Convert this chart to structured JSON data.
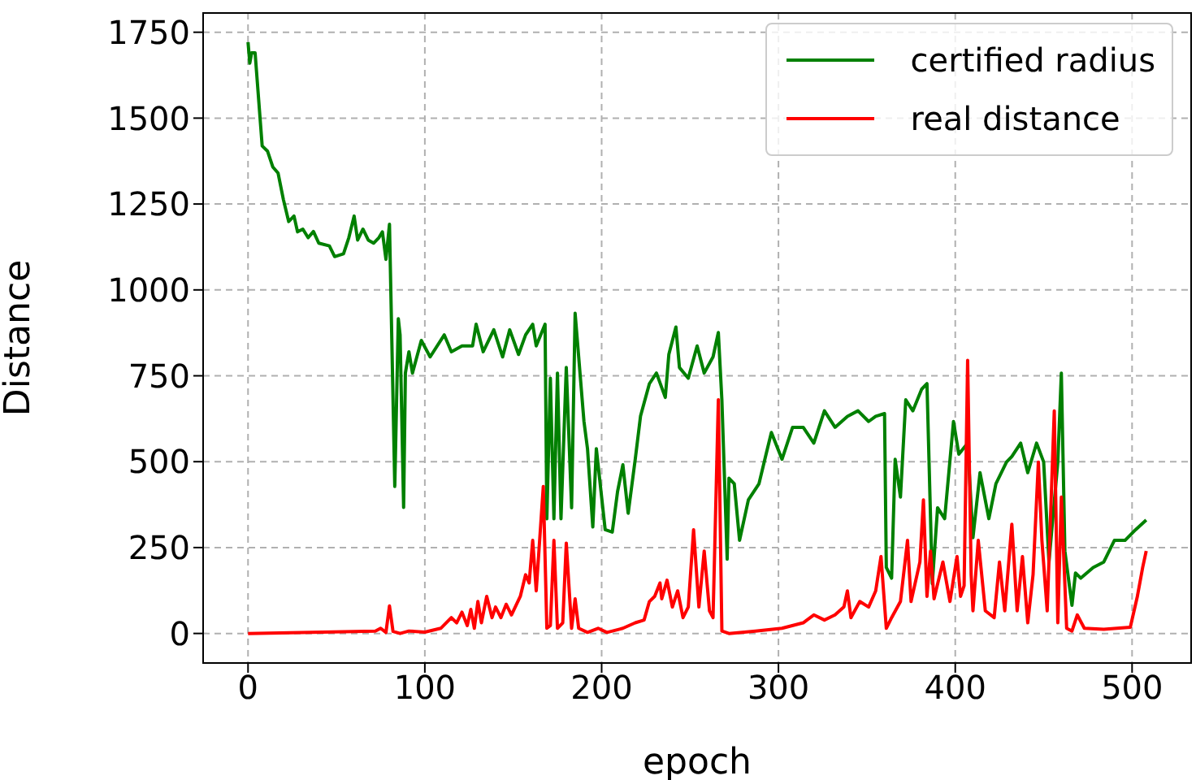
{
  "chart_data": {
    "type": "line",
    "xlabel": "epoch",
    "ylabel": "Distance",
    "xlim": [
      -25.4,
      533.4
    ],
    "ylim": [
      -86,
      1806
    ],
    "xticks": [
      0,
      100,
      200,
      300,
      400,
      500
    ],
    "yticks": [
      0,
      250,
      500,
      750,
      1000,
      1250,
      1500,
      1750
    ],
    "grid": true,
    "legend": "top right",
    "line_style": "solid",
    "marker": "none",
    "series": [
      {
        "name": "certified radius",
        "color": "#008000",
        "x": [
          0,
          1,
          2,
          4,
          8,
          11,
          14,
          17,
          20,
          23,
          26,
          28,
          31,
          34,
          37,
          40,
          46,
          49,
          54,
          57,
          60,
          62,
          65,
          68,
          71,
          74,
          76,
          78,
          80,
          83,
          85,
          86,
          88,
          89,
          91,
          93,
          98,
          103,
          111,
          115,
          121,
          127,
          129,
          133,
          139,
          144,
          148,
          153,
          157,
          161,
          163,
          168,
          169,
          171,
          173,
          175,
          177,
          180,
          183,
          185,
          190,
          192,
          195,
          197,
          202,
          206,
          209,
          212,
          215,
          219,
          222,
          227,
          231,
          236,
          238,
          242,
          244,
          249,
          254,
          258,
          263,
          266,
          268,
          271,
          272,
          275,
          278,
          283,
          289,
          293,
          296,
          302,
          308,
          314,
          320,
          326,
          332,
          339,
          345,
          351,
          355,
          360,
          361,
          364,
          366,
          369,
          372,
          376,
          381,
          384,
          387,
          390,
          394,
          399,
          402,
          407,
          410,
          414,
          419,
          423,
          429,
          432,
          437,
          441,
          446,
          450,
          453,
          458,
          460,
          462,
          466,
          468,
          471,
          478,
          484,
          490,
          496,
          502,
          508
        ],
        "values": [
          1721,
          1660,
          1690,
          1690,
          1419,
          1404,
          1358,
          1340,
          1263,
          1199,
          1215,
          1169,
          1177,
          1152,
          1170,
          1136,
          1128,
          1097,
          1105,
          1152,
          1215,
          1145,
          1177,
          1145,
          1136,
          1152,
          1169,
          1089,
          1191,
          428,
          916,
          869,
          367,
          758,
          820,
          758,
          853,
          805,
          869,
          820,
          837,
          837,
          900,
          820,
          884,
          805,
          884,
          812,
          869,
          900,
          837,
          900,
          334,
          743,
          334,
          758,
          334,
          774,
          366,
          932,
          617,
          538,
          310,
          538,
          302,
          295,
          413,
          491,
          350,
          507,
          633,
          727,
          758,
          687,
          812,
          892,
          774,
          743,
          837,
          758,
          805,
          876,
          680,
          216,
          452,
          436,
          271,
          389,
          436,
          522,
          585,
          507,
          600,
          600,
          554,
          648,
          600,
          632,
          648,
          617,
          632,
          640,
          192,
          161,
          507,
          397,
          680,
          648,
          711,
          727,
          145,
          366,
          334,
          617,
          522,
          554,
          279,
          468,
          334,
          436,
          499,
          515,
          554,
          468,
          554,
          499,
          208,
          499,
          758,
          240,
          82,
          176,
          161,
          192,
          208,
          271,
          271,
          302,
          330
        ]
      },
      {
        "name": "real distance",
        "color": "#ff0000",
        "x": [
          0,
          72,
          75,
          78,
          80,
          82,
          86,
          91,
          100,
          109,
          115,
          118,
          121,
          124,
          126,
          128,
          130,
          132,
          135,
          138,
          140,
          143,
          146,
          149,
          154,
          157,
          159,
          161,
          163,
          167,
          169,
          171,
          173,
          175,
          178,
          180,
          183,
          185,
          187,
          192,
          198,
          203,
          212,
          219,
          224,
          227,
          230,
          233,
          234,
          237,
          240,
          243,
          246,
          249,
          252,
          255,
          258,
          261,
          263,
          266,
          268,
          272,
          287,
          302,
          314,
          320,
          326,
          332,
          337,
          339,
          341,
          346,
          351,
          355,
          358,
          361,
          364,
          369,
          373,
          375,
          380,
          382,
          384,
          386,
          388,
          393,
          397,
          401,
          403,
          405,
          407,
          409,
          410,
          413,
          417,
          422,
          425,
          428,
          432,
          435,
          438,
          441,
          444,
          447,
          449,
          452,
          456,
          458,
          460,
          463,
          466,
          469,
          473,
          484,
          499,
          503,
          506,
          508
        ],
        "values": [
          0,
          7,
          15,
          3,
          80,
          6,
          0,
          7,
          4,
          15,
          46,
          31,
          62,
          23,
          70,
          15,
          93,
          31,
          108,
          46,
          77,
          46,
          85,
          54,
          108,
          171,
          147,
          271,
          124,
          428,
          15,
          23,
          271,
          15,
          31,
          263,
          15,
          101,
          15,
          3,
          15,
          3,
          15,
          31,
          39,
          93,
          108,
          147,
          101,
          155,
          77,
          124,
          46,
          77,
          302,
          77,
          240,
          66,
          46,
          680,
          7,
          0,
          7,
          15,
          31,
          54,
          39,
          54,
          77,
          124,
          46,
          93,
          77,
          124,
          224,
          15,
          46,
          93,
          271,
          93,
          208,
          389,
          108,
          240,
          101,
          208,
          93,
          224,
          108,
          139,
          795,
          171,
          66,
          271,
          66,
          46,
          208,
          66,
          318,
          66,
          224,
          31,
          171,
          499,
          271,
          66,
          648,
          31,
          397,
          15,
          7,
          54,
          15,
          12,
          18,
          108,
          192,
          240
        ]
      }
    ]
  }
}
